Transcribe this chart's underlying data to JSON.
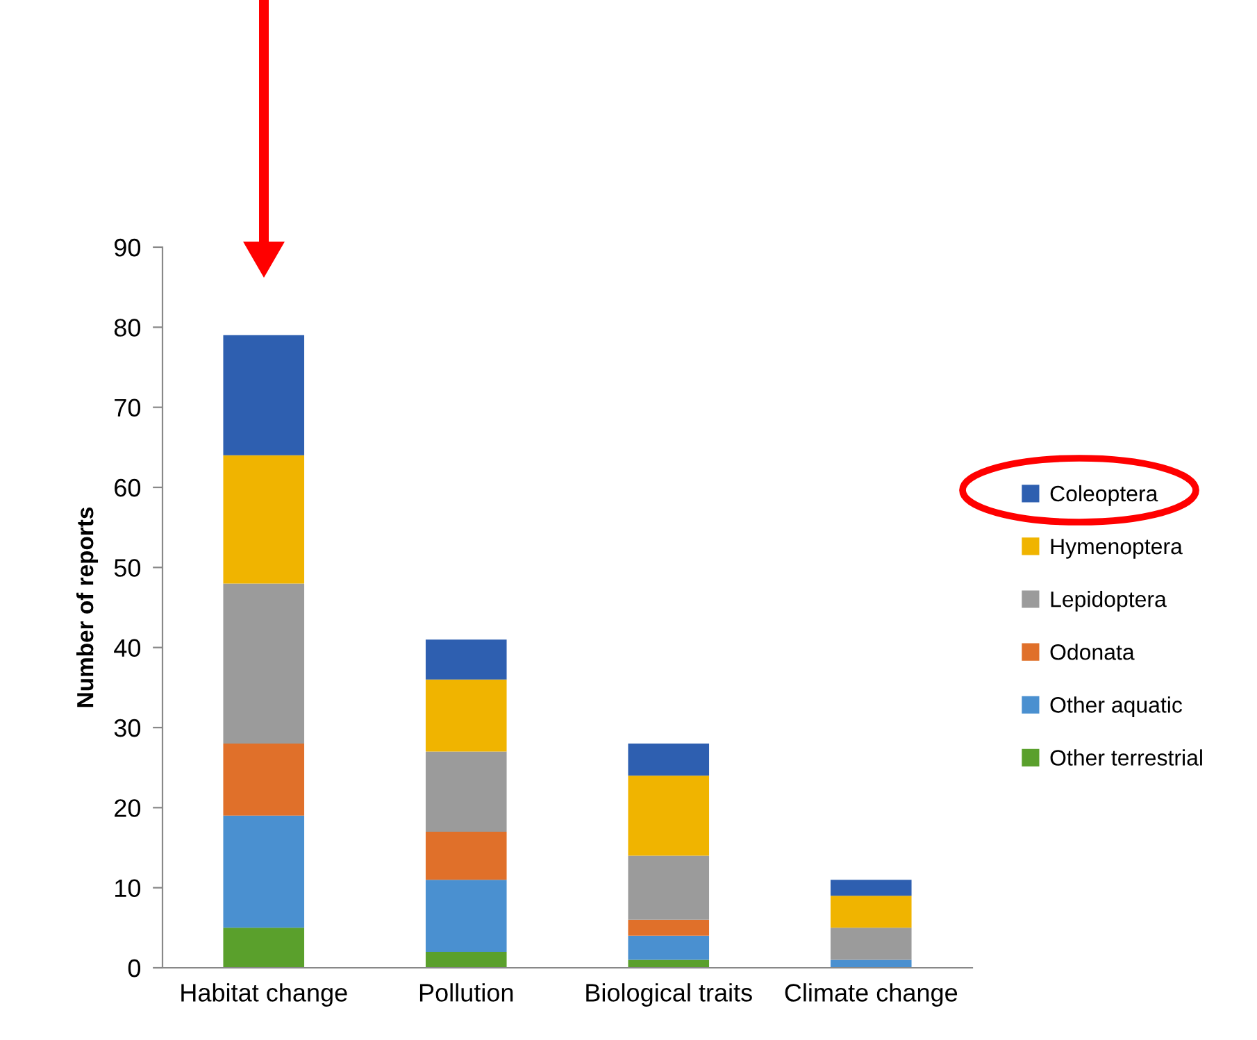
{
  "chart_data": {
    "type": "bar",
    "stacked": true,
    "ylabel": "Number of reports",
    "categories": [
      "Habitat change",
      "Pollution",
      "Biological traits",
      "Climate change"
    ],
    "series": [
      {
        "name": "Other terrestrial",
        "color": "#5aa02c",
        "values": [
          5,
          2,
          1,
          0
        ]
      },
      {
        "name": "Other aquatic",
        "color": "#4a90d0",
        "values": [
          14,
          9,
          3,
          1
        ]
      },
      {
        "name": "Odonata",
        "color": "#e0702a",
        "values": [
          9,
          6,
          2,
          0
        ]
      },
      {
        "name": "Lepidoptera",
        "color": "#9b9b9b",
        "values": [
          20,
          10,
          8,
          4
        ]
      },
      {
        "name": "Hymenoptera",
        "color": "#f0b400",
        "values": [
          16,
          9,
          10,
          4
        ]
      },
      {
        "name": "Coleoptera",
        "color": "#2e5fb0",
        "values": [
          15,
          5,
          4,
          2
        ]
      }
    ],
    "ylim": [
      0,
      90
    ],
    "yticks": [
      0,
      10,
      20,
      30,
      40,
      50,
      60,
      70,
      80,
      90
    ],
    "grid": false,
    "legend": "right"
  }
}
